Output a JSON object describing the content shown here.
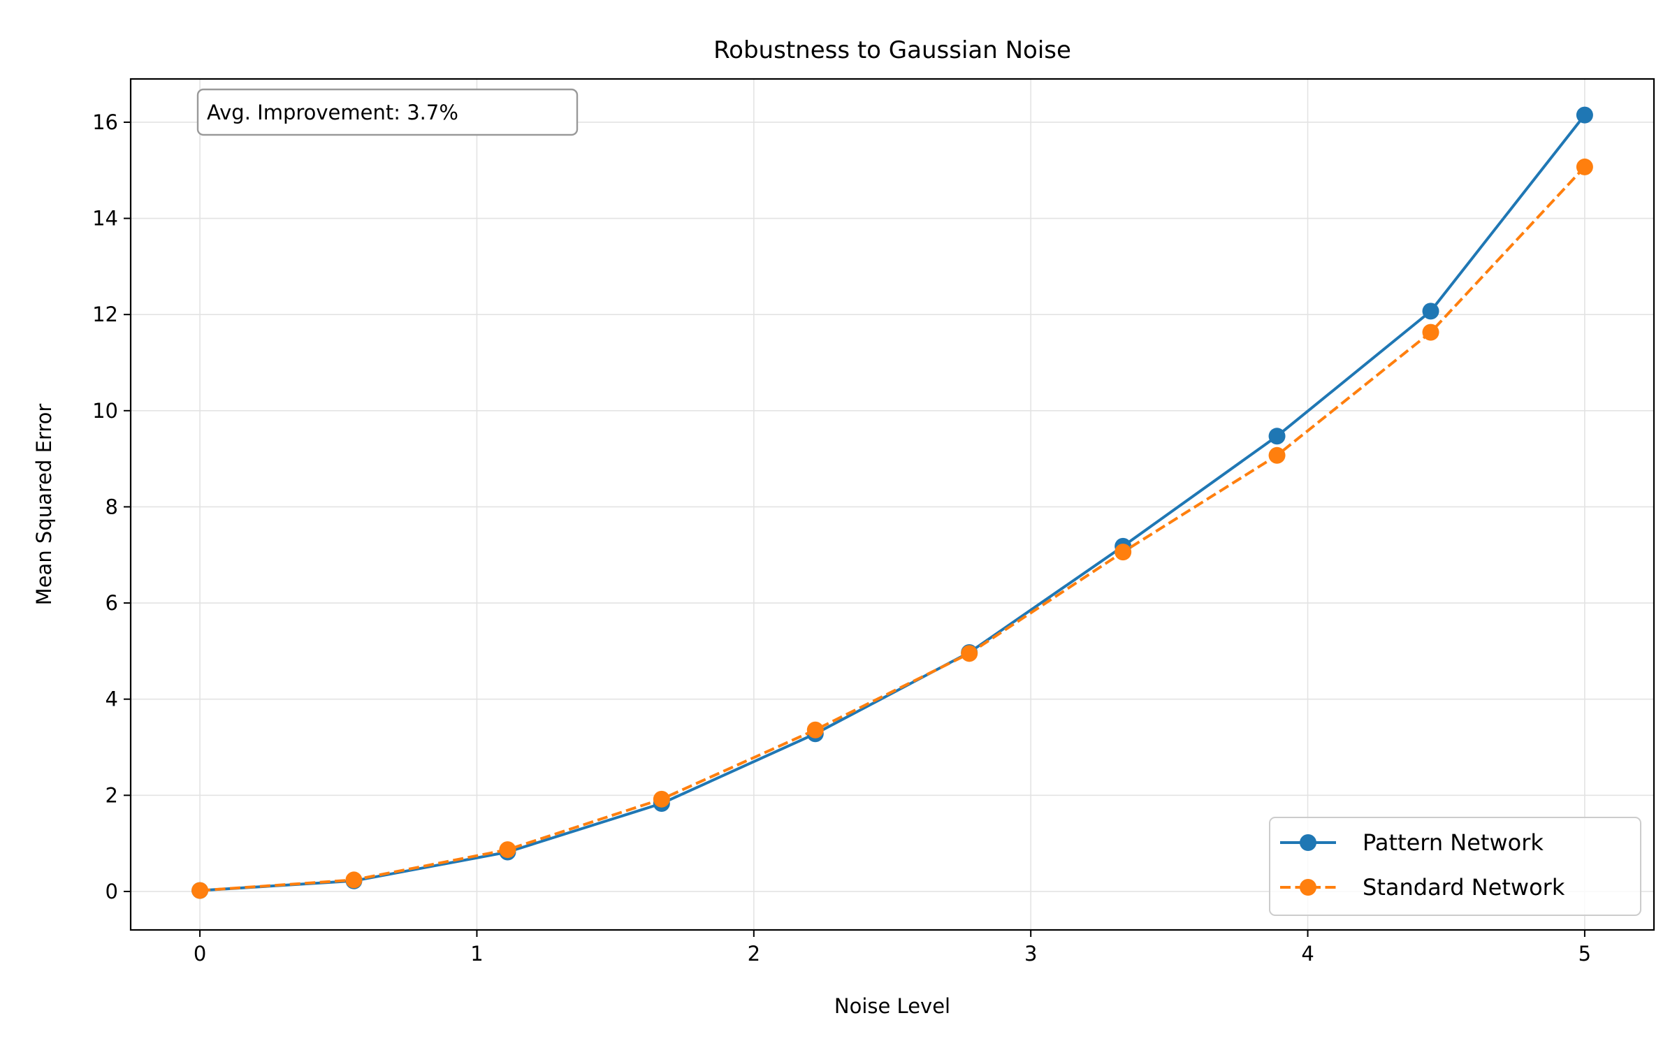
{
  "chart_data": {
    "type": "line",
    "title": "Robustness to Gaussian Noise",
    "xlabel": "Noise Level",
    "ylabel": "Mean Squared Error",
    "xlim": [
      -0.25,
      5.25
    ],
    "ylim": [
      -0.8,
      16.9
    ],
    "xticks": [
      0,
      1,
      2,
      3,
      4,
      5
    ],
    "yticks": [
      0,
      2,
      4,
      6,
      8,
      10,
      12,
      14,
      16
    ],
    "grid": true,
    "legend_position": "lower-right",
    "annotation": "Avg. Improvement: 3.7%",
    "x": [
      0.0,
      0.556,
      1.111,
      1.667,
      2.222,
      2.778,
      3.333,
      3.889,
      4.444,
      5.0
    ],
    "series": [
      {
        "name": "Pattern Network",
        "color": "#1f77b4",
        "line_style": "solid",
        "marker": "circle",
        "values": [
          0.02,
          0.22,
          0.82,
          1.83,
          3.28,
          4.97,
          7.18,
          9.47,
          12.07,
          16.15
        ]
      },
      {
        "name": "Standard Network",
        "color": "#ff7f0e",
        "line_style": "dashed",
        "marker": "circle",
        "values": [
          0.02,
          0.24,
          0.87,
          1.92,
          3.36,
          4.95,
          7.06,
          9.07,
          11.63,
          15.07
        ]
      }
    ]
  }
}
